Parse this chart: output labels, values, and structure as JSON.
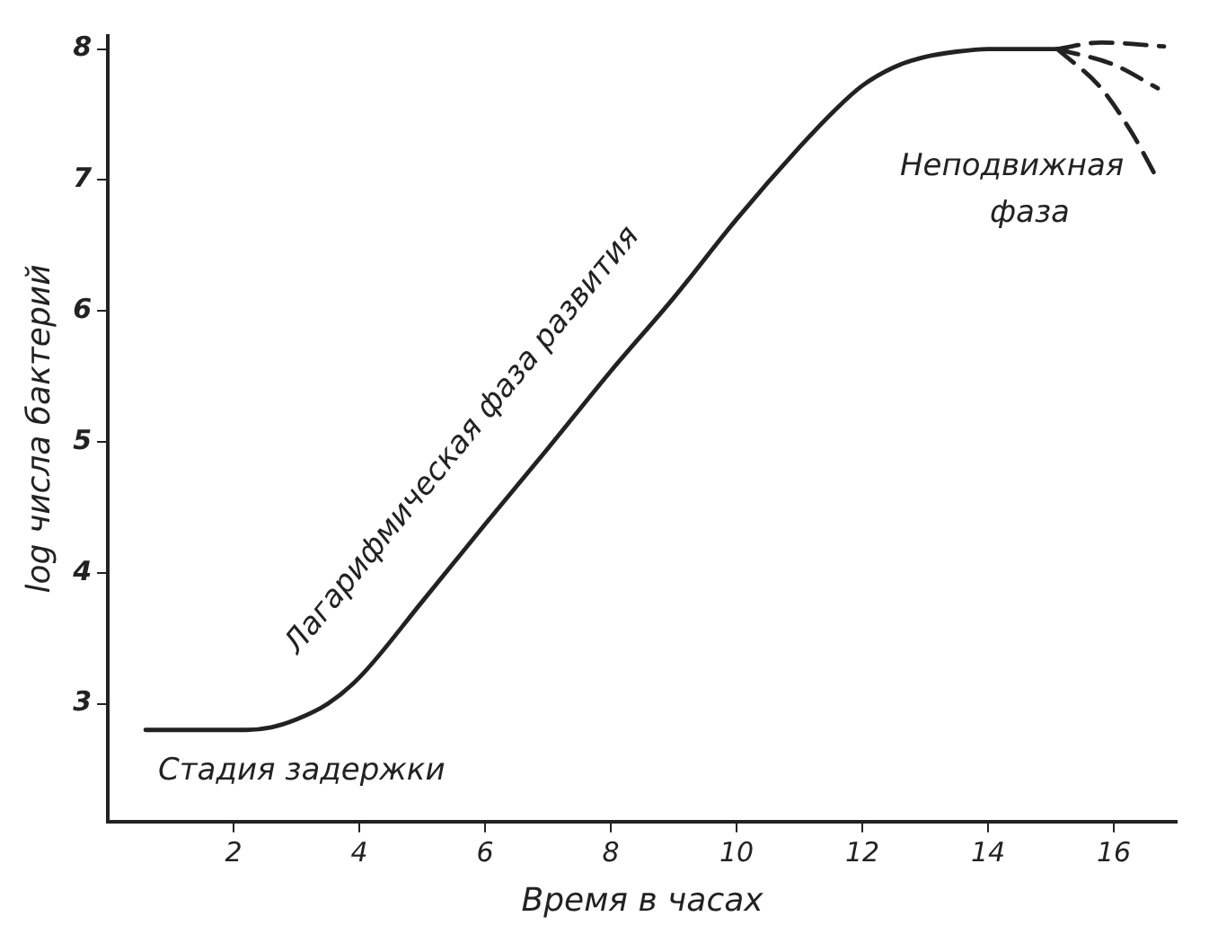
{
  "chart_data": {
    "type": "line",
    "xlabel": "Время в часах",
    "ylabel": "log числа бактерий",
    "xlim": [
      0,
      17
    ],
    "xticks": [
      2,
      4,
      6,
      8,
      10,
      12,
      14,
      16
    ],
    "ylim": [
      2.1,
      8.1
    ],
    "yticks": [
      3,
      4,
      5,
      6,
      7,
      8
    ],
    "grid": false,
    "legend": false,
    "marker": "none",
    "series": [
      {
        "color": "#222222",
        "line_style": "solid",
        "x": [
          0.6,
          1.5,
          2.2,
          2.6,
          3,
          3.5,
          4,
          5,
          6,
          7,
          8,
          9,
          10,
          11,
          11.6,
          12,
          12.5,
          13,
          13.5,
          14,
          14.5,
          15.1
        ],
        "values": [
          2.8,
          2.8,
          2.8,
          2.82,
          2.88,
          3.0,
          3.2,
          3.78,
          4.37,
          4.95,
          5.54,
          6.1,
          6.7,
          7.25,
          7.55,
          7.72,
          7.86,
          7.94,
          7.98,
          8.0,
          8.0,
          8.0
        ]
      },
      {
        "color": "#222222",
        "line_style": "dashed",
        "x": [
          15.1,
          15.8,
          16.8
        ],
        "values": [
          8.0,
          8.05,
          8.02
        ]
      },
      {
        "color": "#222222",
        "line_style": "dashed",
        "x": [
          15.1,
          16,
          16.7
        ],
        "values": [
          8.0,
          7.88,
          7.7
        ]
      },
      {
        "color": "#222222",
        "line_style": "dashed",
        "x": [
          15.1,
          15.8,
          16.3,
          16.7
        ],
        "values": [
          8.0,
          7.7,
          7.35,
          7.0
        ]
      }
    ],
    "annotations": [
      "Стадия задержки",
      "Лагарифмическая фаза развития",
      "Неподвижная фаза"
    ]
  }
}
